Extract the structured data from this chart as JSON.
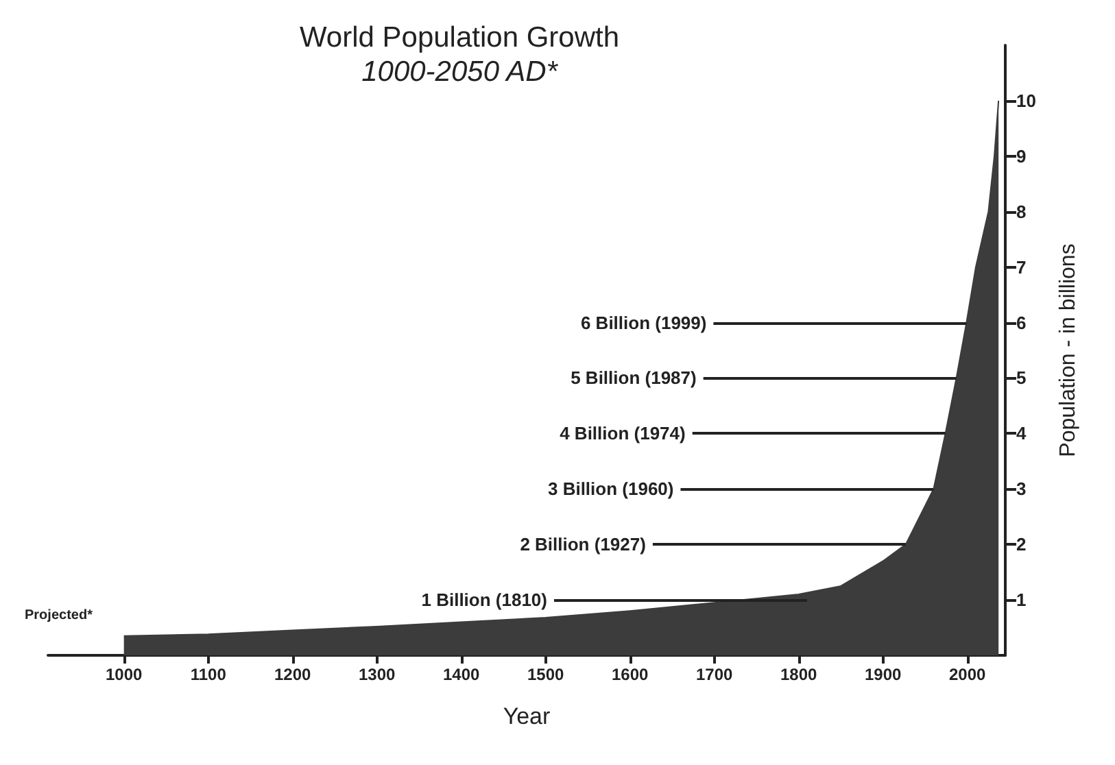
{
  "chart_data": {
    "type": "area",
    "title": "World Population Growth",
    "subtitle": "1000-2050 AD*",
    "xlabel": "Year",
    "ylabel": "Population - in billions",
    "x": [
      1000,
      1100,
      1200,
      1300,
      1400,
      1500,
      1600,
      1700,
      1800,
      1850,
      1900,
      1927,
      1960,
      1974,
      1987,
      1999,
      2010,
      2025,
      2032,
      2037
    ],
    "series": [
      {
        "color": "#3c3c3c",
        "values": [
          0.35,
          0.38,
          0.45,
          0.52,
          0.6,
          0.68,
          0.8,
          0.95,
          1.1,
          1.25,
          1.7,
          2,
          3,
          4,
          5,
          6,
          7,
          8,
          9,
          10
        ]
      }
    ],
    "xlim": [
      910,
      2045
    ],
    "xticks": [
      1000,
      1100,
      1200,
      1300,
      1400,
      1500,
      1600,
      1700,
      1800,
      1900,
      2000
    ],
    "ylim": [
      0,
      11
    ],
    "yticks": [
      1,
      2,
      3,
      4,
      5,
      6,
      7,
      8,
      9,
      10
    ],
    "annotations": [
      {
        "text": "6 Billion (1999)",
        "x": 1999,
        "y": 6
      },
      {
        "text": "5 Billion (1987)",
        "x": 1987,
        "y": 5
      },
      {
        "text": "4 Billion (1974)",
        "x": 1974,
        "y": 4
      },
      {
        "text": "3 Billion (1960)",
        "x": 1960,
        "y": 3
      },
      {
        "text": "2 Billion (1927)",
        "x": 1927,
        "y": 2
      },
      {
        "text": "1 Billion (1810)",
        "x": 1810,
        "y": 1
      },
      "Projected*"
    ],
    "grid": false
  }
}
